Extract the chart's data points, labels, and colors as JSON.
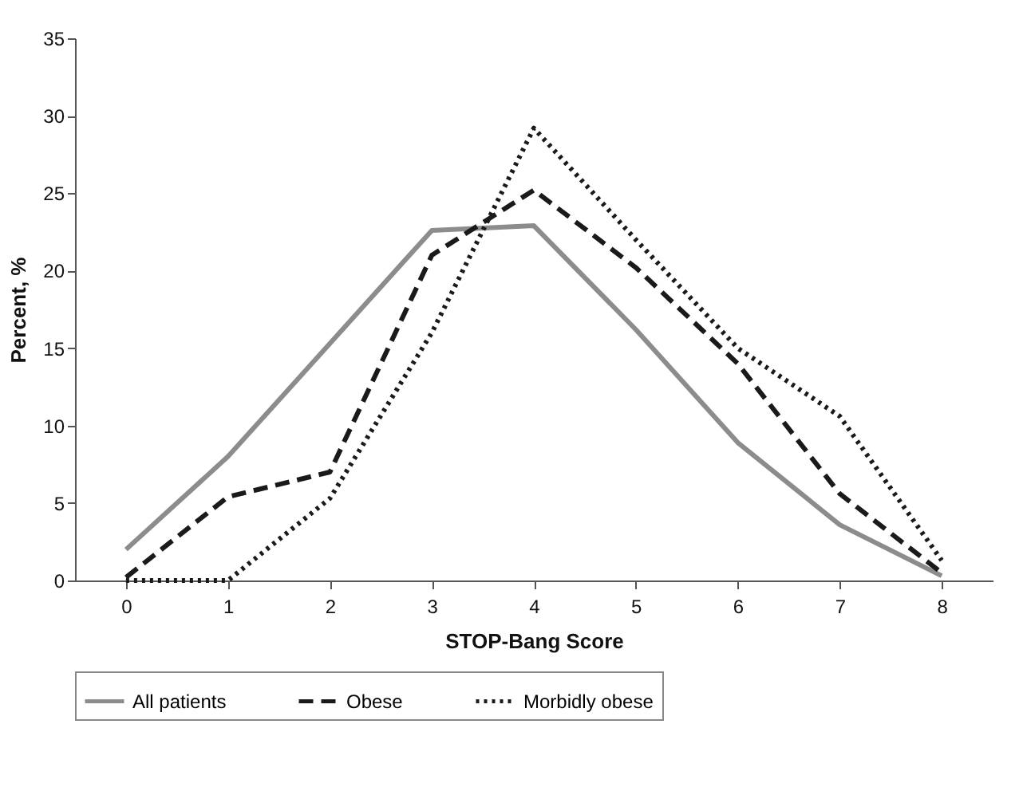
{
  "chart_data": {
    "type": "line",
    "xlabel": "STOP-Bang Score",
    "ylabel": "Percent, %",
    "categories": [
      "0",
      "1",
      "2",
      "3",
      "4",
      "5",
      "6",
      "7",
      "8"
    ],
    "series": [
      {
        "name": "All patients",
        "color": "#8c8c8c",
        "line_style": "solid",
        "values": [
          2,
          8,
          15.3,
          22.6,
          22.9,
          16.2,
          8.9,
          3.6,
          0.3
        ]
      },
      {
        "name": "Obese",
        "color": "#1a1a1a",
        "line_style": "dashed",
        "values": [
          0.2,
          5.4,
          7,
          21,
          25.2,
          20.2,
          14,
          5.6,
          0.5
        ]
      },
      {
        "name": "Morbidly obese",
        "color": "#1a1a1a",
        "line_style": "dotted",
        "values": [
          0,
          0,
          5.3,
          16,
          29.2,
          22,
          15,
          10.6,
          1.3
        ]
      }
    ],
    "ylim": [
      0,
      35
    ],
    "yticks": [
      0,
      5,
      10,
      15,
      20,
      25,
      30,
      35
    ],
    "grid": false,
    "legend": "bottom",
    "marker": "none"
  }
}
